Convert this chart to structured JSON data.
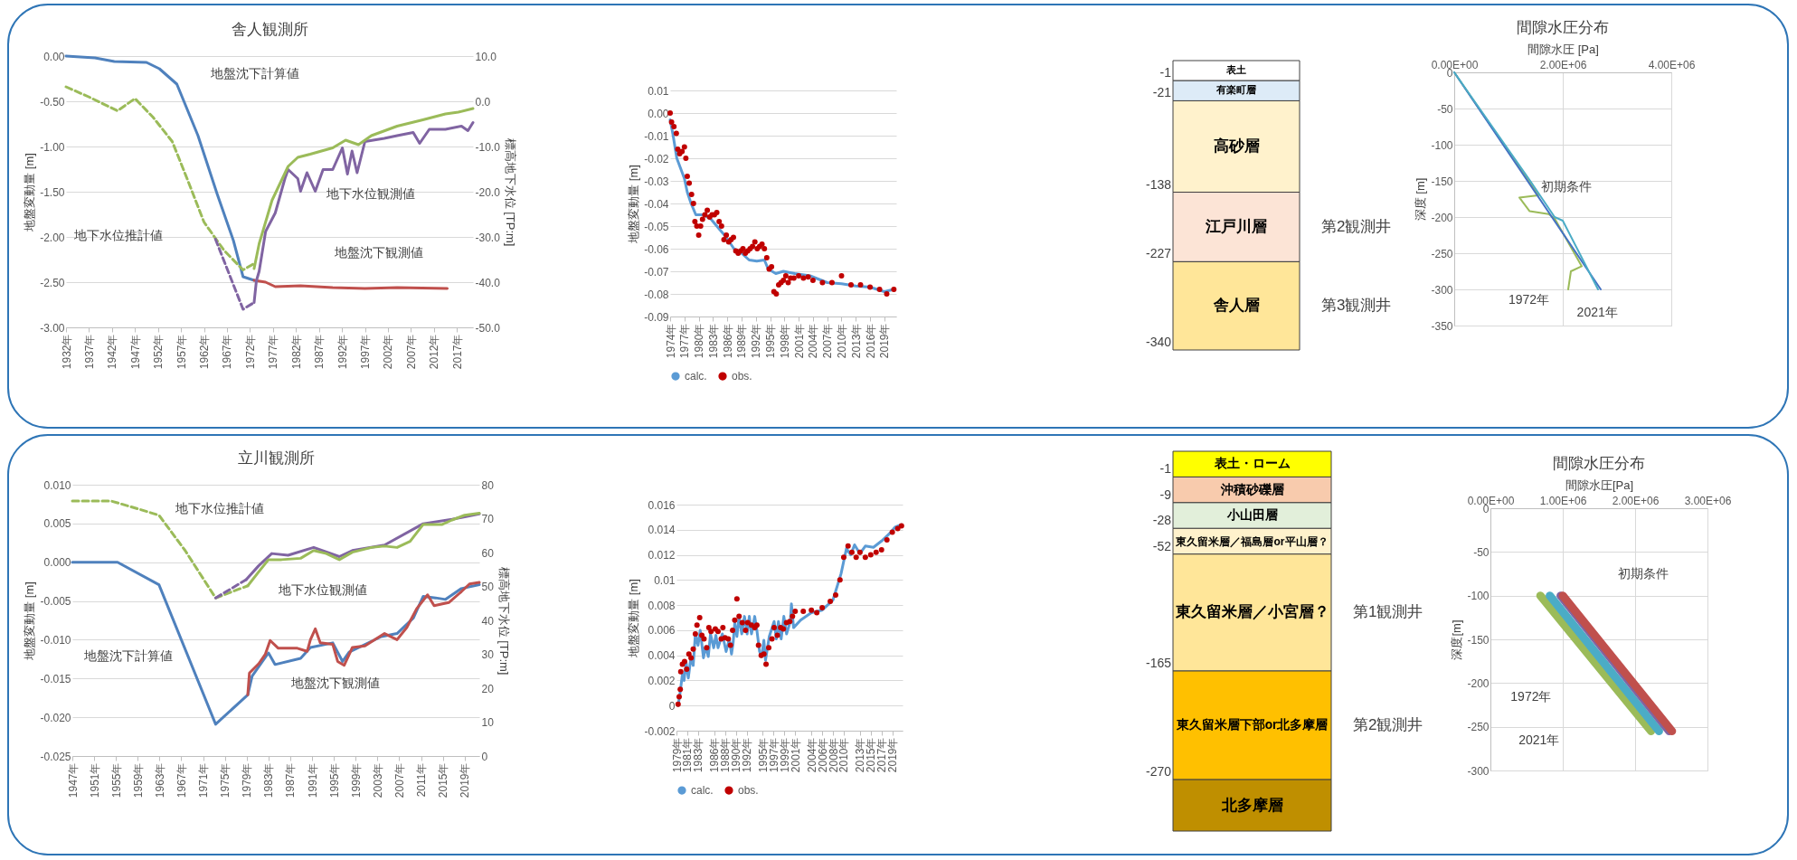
{
  "chart_data": [
    {
      "type": "line",
      "title": "舎人観測所",
      "ylabel": "地盤変動量 [m]",
      "y2label": "標高地下水位 [TP:m]",
      "grid": "y",
      "xlim": [
        1932,
        2020.5
      ],
      "xticks": [
        {
          "value": 1932,
          "label": "1932年"
        },
        {
          "value": 1937,
          "label": "1937年"
        },
        {
          "value": 1942,
          "label": "1942年"
        },
        {
          "value": 1947,
          "label": "1947年"
        },
        {
          "value": 1952,
          "label": "1952年"
        },
        {
          "value": 1957,
          "label": "1957年"
        },
        {
          "value": 1962,
          "label": "1962年"
        },
        {
          "value": 1967,
          "label": "1967年"
        },
        {
          "value": 1972,
          "label": "1972年"
        },
        {
          "value": 1977,
          "label": "1977年"
        },
        {
          "value": 1982,
          "label": "1982年"
        },
        {
          "value": 1987,
          "label": "1987年"
        },
        {
          "value": 1992,
          "label": "1992年"
        },
        {
          "value": 1997,
          "label": "1997年"
        },
        {
          "value": 2002,
          "label": "2002年"
        },
        {
          "value": 2007,
          "label": "2007年"
        },
        {
          "value": 2012,
          "label": "2012年"
        },
        {
          "value": 2017,
          "label": "2017年"
        }
      ],
      "ylim": [
        -3,
        0
      ],
      "yticks": [
        {
          "value": 0,
          "label": "0.00"
        },
        {
          "value": -0.5,
          "label": "-0.50"
        },
        {
          "value": -1,
          "label": "-1.00"
        },
        {
          "value": -1.5,
          "label": "-1.50"
        },
        {
          "value": -2,
          "label": "-2.00"
        },
        {
          "value": -2.5,
          "label": "-2.50"
        },
        {
          "value": -3,
          "label": "-3.00"
        }
      ],
      "y2lim": [
        -50,
        10
      ],
      "y2ticks": [
        {
          "value": 10,
          "label": "10.0"
        },
        {
          "value": 0,
          "label": "0.0"
        },
        {
          "value": -10,
          "label": "-10.0"
        },
        {
          "value": -20,
          "label": "-20.0"
        },
        {
          "value": -30,
          "label": "-30.0"
        },
        {
          "value": -40,
          "label": "-40.0"
        },
        {
          "value": -50,
          "label": "-50.0"
        }
      ],
      "series": [
        {
          "color": "#9bbb59",
          "axis": "y2",
          "line_style": "dashed",
          "x": [
            1932,
            1936.9,
            1943.2,
            1947,
            1950.9,
            1955.1,
            1958.6,
            1962,
            1966.3,
            1970.5,
            1972.9
          ],
          "values": [
            3.2,
            1.0,
            -2.1,
            0.6,
            -3.5,
            -8.9,
            -17.8,
            -26.7,
            -32.9,
            -37.3,
            -35.9
          ]
        },
        {
          "color": "#8064a2",
          "axis": "y2",
          "line_style": "dashed",
          "x": [
            1964.5,
            1970.5,
            1972.9
          ],
          "values": [
            -30.5,
            -46.0,
            -44.5
          ]
        },
        {
          "color": "#8064a2",
          "axis": "y2",
          "x": [
            1972.9,
            1973.4,
            1974,
            1975.4,
            1977.5,
            1979.6,
            1980.3,
            1982.4,
            1983,
            1984.4,
            1986.2,
            1987.9,
            1990,
            1992.1,
            1993.2,
            1994.2,
            1995.3,
            1997,
            2001.2,
            2004,
            2007.5,
            2008.9,
            2011,
            2014.5,
            2018,
            2019.4,
            2020.5
          ],
          "values": [
            -44.5,
            -39.7,
            -37.6,
            -28.8,
            -24.7,
            -17.1,
            -15.1,
            -17.1,
            -19.9,
            -15.8,
            -19.9,
            -15.1,
            -15.1,
            -10.3,
            -16.1,
            -11.0,
            -15.8,
            -8.9,
            -8.2,
            -7.6,
            -6.9,
            -9.3,
            -6.2,
            -6.2,
            -5.5,
            -6.5,
            -4.7
          ]
        },
        {
          "color": "#9bbb59",
          "axis": "y2",
          "x": [
            1972.9,
            1974,
            1976.8,
            1980.3,
            1982.4,
            1985.1,
            1990,
            1992.8,
            1995.6,
            1998.4,
            2004,
            2009.6,
            2014.5,
            2017.3,
            2020.5
          ],
          "values": [
            -37.0,
            -31.5,
            -21.9,
            -14.4,
            -12.4,
            -11.7,
            -10.3,
            -8.6,
            -9.6,
            -7.6,
            -5.5,
            -4.1,
            -2.8,
            -2.4,
            -1.6
          ]
        },
        {
          "color": "#4f81bd",
          "x": [
            1932,
            1938.3,
            1942.5,
            1949.5,
            1952.3,
            1956.1,
            1960.7,
            1964.9,
            1968.4,
            1970.5,
            1972.9
          ],
          "values": [
            0,
            -0.02,
            -0.06,
            -0.07,
            -0.14,
            -0.31,
            -0.88,
            -1.53,
            -2.04,
            -2.44,
            -2.48
          ]
        },
        {
          "color": "#c0504d",
          "x": [
            1972.9,
            1975.4,
            1977.5,
            1983,
            1990,
            1997,
            2004,
            2014.9
          ],
          "values": [
            -2.48,
            -2.5,
            -2.55,
            -2.54,
            -2.56,
            -2.57,
            -2.56,
            -2.57
          ]
        }
      ],
      "annotations": [
        "地盤沈下計算値",
        "地下水位観測値",
        "地下水位推計値",
        "地盤沈下観測値"
      ]
    },
    {
      "type": "scatter",
      "ylabel": "地盤変動量 [m]",
      "grid": "y",
      "legend": "bottom",
      "xlim": [
        1974,
        2021.5
      ],
      "xticks": [
        {
          "value": 1974,
          "label": "1974年"
        },
        {
          "value": 1977,
          "label": "1977年"
        },
        {
          "value": 1980,
          "label": "1980年"
        },
        {
          "value": 1983,
          "label": "1983年"
        },
        {
          "value": 1986,
          "label": "1986年"
        },
        {
          "value": 1989,
          "label": "1989年"
        },
        {
          "value": 1992,
          "label": "1992年"
        },
        {
          "value": 1995,
          "label": "1995年"
        },
        {
          "value": 1998,
          "label": "1998年"
        },
        {
          "value": 2001,
          "label": "2001年"
        },
        {
          "value": 2004,
          "label": "2004年"
        },
        {
          "value": 2007,
          "label": "2007年"
        },
        {
          "value": 2010,
          "label": "2010年"
        },
        {
          "value": 2013,
          "label": "2013年"
        },
        {
          "value": 2016,
          "label": "2016年"
        },
        {
          "value": 2019,
          "label": "2019年"
        }
      ],
      "ylim": [
        -0.09,
        0.01
      ],
      "yticks": [
        0.01,
        {
          "value": 0,
          "label": "0.00"
        },
        -0.01,
        -0.02,
        -0.03,
        -0.04,
        -0.05,
        -0.06,
        -0.07,
        -0.08,
        -0.09
      ],
      "series": [
        {
          "name": "calc.",
          "type": "line",
          "color": "#5b9bd5",
          "x": [
            1974,
            1974.6,
            1975.4,
            1977,
            1977.6,
            1978.4,
            1979.4,
            1981,
            1982.6,
            1984.2,
            1985.8,
            1987.4,
            1989,
            1990.6,
            1992.2,
            1993.8,
            1994.6,
            1996.2,
            1997.8,
            2000.2,
            2003.4,
            2007,
            2010,
            2013,
            2016,
            2019,
            2021
          ],
          "values": [
            -0.003,
            -0.0096,
            -0.02,
            -0.029,
            -0.035,
            -0.04,
            -0.045,
            -0.045,
            -0.047,
            -0.051,
            -0.055,
            -0.06,
            -0.062,
            -0.065,
            -0.0655,
            -0.065,
            -0.069,
            -0.071,
            -0.07,
            -0.071,
            -0.072,
            -0.075,
            -0.0755,
            -0.0765,
            -0.077,
            -0.079,
            -0.078
          ]
        },
        {
          "name": "obs.",
          "type": "scatter",
          "color": "#c00000",
          "x": [
            1974,
            1974.3,
            1974.8,
            1975.3,
            1975.6,
            1976,
            1976.5,
            1977,
            1977.3,
            1977.6,
            1978,
            1978.5,
            1978.9,
            1979.2,
            1979.6,
            1980,
            1980.4,
            1980.8,
            1981.3,
            1981.8,
            1982.3,
            1982.8,
            1983.3,
            1983.8,
            1984.3,
            1984.8,
            1985.3,
            1985.8,
            1986.3,
            1986.8,
            1987.3,
            1987.8,
            1988.3,
            1988.8,
            1989.3,
            1989.8,
            1990.3,
            1990.8,
            1991.3,
            1991.8,
            1992.3,
            1992.8,
            1993.3,
            1993.8,
            1994.3,
            1994.8,
            1995.3,
            1995.8,
            1996.3,
            1996.8,
            1997.3,
            1997.8,
            1998.3,
            1998.8,
            1999.3,
            2000,
            2001,
            2002,
            2003,
            2004,
            2006,
            2008,
            2010,
            2012,
            2014,
            2016,
            2018,
            2019.5,
            2021
          ],
          "values": [
            0,
            -0.004,
            -0.006,
            -0.009,
            -0.016,
            -0.018,
            -0.017,
            -0.015,
            -0.02,
            -0.028,
            -0.031,
            -0.036,
            -0.04,
            -0.048,
            -0.05,
            -0.054,
            -0.05,
            -0.047,
            -0.045,
            -0.043,
            -0.046,
            -0.045,
            -0.045,
            -0.044,
            -0.048,
            -0.05,
            -0.056,
            -0.054,
            -0.057,
            -0.056,
            -0.055,
            -0.061,
            -0.062,
            -0.061,
            -0.06,
            -0.062,
            -0.061,
            -0.06,
            -0.059,
            -0.057,
            -0.06,
            -0.059,
            -0.058,
            -0.06,
            -0.064,
            -0.069,
            -0.068,
            -0.079,
            -0.08,
            -0.076,
            -0.075,
            -0.074,
            -0.072,
            -0.075,
            -0.073,
            -0.073,
            -0.072,
            -0.073,
            -0.0725,
            -0.074,
            -0.075,
            -0.075,
            -0.072,
            -0.076,
            -0.076,
            -0.077,
            -0.078,
            -0.08,
            -0.078
          ]
        }
      ]
    },
    {
      "type": "other",
      "categories": [
        "表土",
        "有楽町層",
        "高砂層",
        "江戸川層",
        "舎人層"
      ],
      "values": [
        -1,
        -21,
        -138,
        -227,
        -340
      ],
      "value_labels": [
        "-1",
        "-21",
        "-138",
        "-227",
        "-340"
      ],
      "colors": [
        "#ffffff",
        "#ddebf7",
        "#fff2cc",
        "#fce4d6",
        "#ffe699"
      ],
      "annotations": [
        {
          "text": "第2観測井",
          "y": "江戸川層"
        },
        {
          "text": "第3観測井",
          "y": "舎人層"
        }
      ]
    },
    {
      "type": "line",
      "title": "間隙水圧分布",
      "xlabel": "間隙水圧 [Pa]",
      "ylabel": "深度 [m]",
      "grid": true,
      "xlim": [
        0,
        4000000
      ],
      "xticks": [
        {
          "value": 0,
          "label": "0.00E+00"
        },
        {
          "value": 2000000,
          "label": "2.00E+06"
        },
        {
          "value": 4000000,
          "label": "4.00E+06"
        }
      ],
      "ylim": [
        -350,
        0
      ],
      "yticks": [
        0,
        -50,
        -100,
        -150,
        -200,
        -250,
        -300,
        -350
      ],
      "series": [
        {
          "color": "#9bbb59",
          "x": [
            0,
            1370000,
            1550000,
            1200000,
            1390000,
            1740000,
            1850000,
            2350000,
            2150000,
            2100000
          ],
          "values": [
            0,
            -150,
            -170,
            -173,
            -192,
            -196,
            -202,
            -268,
            -275,
            -300
          ]
        },
        {
          "color": "#4472c4",
          "x": [
            0,
            2700000
          ],
          "values": [
            0,
            -300
          ]
        },
        {
          "color": "#4bacc6",
          "x": [
            0,
            1400000,
            1850000,
            2000000,
            2650000
          ],
          "values": [
            0,
            -150,
            -200,
            -205,
            -300
          ]
        }
      ],
      "annotations": [
        "初期条件",
        "1972年",
        "2021年"
      ]
    },
    {
      "type": "line",
      "title": "立川観測所",
      "ylabel": "地盤変動量 [m]",
      "y2label": "標高地下水位 [TP:m]",
      "grid": "y",
      "xlim": [
        1947,
        2021.7
      ],
      "xticks": [
        {
          "value": 1947,
          "label": "1947年"
        },
        {
          "value": 1951,
          "label": "1951年"
        },
        {
          "value": 1955,
          "label": "1955年"
        },
        {
          "value": 1959,
          "label": "1959年"
        },
        {
          "value": 1963,
          "label": "1963年"
        },
        {
          "value": 1967,
          "label": "1967年"
        },
        {
          "value": 1971,
          "label": "1971年"
        },
        {
          "value": 1975,
          "label": "1975年"
        },
        {
          "value": 1979,
          "label": "1979年"
        },
        {
          "value": 1983,
          "label": "1983年"
        },
        {
          "value": 1987,
          "label": "1987年"
        },
        {
          "value": 1991,
          "label": "1991年"
        },
        {
          "value": 1995,
          "label": "1995年"
        },
        {
          "value": 1999,
          "label": "1999年"
        },
        {
          "value": 2003,
          "label": "2003年"
        },
        {
          "value": 2007,
          "label": "2007年"
        },
        {
          "value": 2011,
          "label": "2011年"
        },
        {
          "value": 2015,
          "label": "2015年"
        },
        {
          "value": 2019,
          "label": "2019年"
        }
      ],
      "ylim": [
        -0.025,
        0.01
      ],
      "yticks": [
        {
          "value": 0.01,
          "label": "0.010"
        },
        0.005,
        {
          "value": 0,
          "label": "0.000"
        },
        -0.005,
        {
          "value": -0.01,
          "label": "-0.010"
        },
        -0.015,
        {
          "value": -0.02,
          "label": "-0.020"
        },
        -0.025
      ],
      "y2lim": [
        0,
        80
      ],
      "y2ticks": [
        0,
        10,
        20,
        30,
        40,
        50,
        60,
        70,
        80
      ],
      "series": [
        {
          "color": "#9bbb59",
          "axis": "y2",
          "line_style": "dashed",
          "x": [
            1947,
            1954.1,
            1958.8,
            1962.9,
            1967.7,
            1973.3,
            1979.2
          ],
          "values": [
            75.2,
            75.2,
            73.0,
            71.0,
            60.6,
            46.6,
            50.2
          ]
        },
        {
          "color": "#8064a2",
          "axis": "y2",
          "line_style": "dashed",
          "x": [
            1973.3,
            1978.9
          ],
          "values": [
            46.6,
            52.0
          ]
        },
        {
          "color": "#8064a2",
          "axis": "y2",
          "x": [
            1978.9,
            1981.2,
            1983.6,
            1986.6,
            1991.3,
            1996,
            1998.4,
            2004.3,
            2011.4,
            2016.7,
            2021.7
          ],
          "values": [
            52.0,
            56.1,
            59.7,
            59.2,
            61.5,
            58.8,
            60.6,
            62.2,
            68.5,
            69.8,
            71.4
          ]
        },
        {
          "color": "#9bbb59",
          "axis": "y2",
          "x": [
            1979.2,
            1981.2,
            1983,
            1985.4,
            1988.9,
            1991.3,
            1993.6,
            1996,
            1998.4,
            2001.9,
            2004.3,
            2006.6,
            2009,
            2011.4,
            2014.9,
            2016.7,
            2019,
            2021.7
          ],
          "values": [
            50.2,
            54.3,
            57.9,
            57.9,
            58.3,
            60.6,
            59.7,
            57.9,
            60.1,
            61.5,
            61.9,
            61.5,
            63.3,
            68.3,
            68.3,
            69.6,
            71.0,
            71.6
          ]
        },
        {
          "color": "#4f81bd",
          "x": [
            1947,
            1955.3,
            1962.9,
            1973.3,
            1979.2,
            1980,
            1983,
            1984.2,
            1988.9,
            1990.7,
            1994.8,
            1996.6,
            1997.8,
            2003.7,
            2006.6,
            2009.6,
            2011.4,
            2013.7,
            2015.5,
            2018.4,
            2021.7
          ],
          "values": [
            0,
            0,
            -0.0029,
            -0.0209,
            -0.0171,
            -0.0147,
            -0.0117,
            -0.0132,
            -0.0124,
            -0.011,
            -0.0104,
            -0.0128,
            -0.0116,
            -0.0096,
            -0.0092,
            -0.0072,
            -0.0044,
            -0.0046,
            -0.0048,
            -0.0034,
            -0.0029
          ]
        },
        {
          "color": "#c0504d",
          "x": [
            1979.2,
            1979.5,
            1981.2,
            1982.4,
            1983.3,
            1984.8,
            1986.6,
            1988.3,
            1990.1,
            1990.7,
            1991.6,
            1992.5,
            1994.8,
            1995.7,
            1996.9,
            1998.4,
            2000.7,
            2004.3,
            2006.6,
            2008.4,
            2010.2,
            2012.2,
            2013.4,
            2016.1,
            2018.4,
            2019.9,
            2021.7
          ],
          "values": [
            -0.0171,
            -0.0143,
            -0.0131,
            -0.0119,
            -0.0101,
            -0.0111,
            -0.0111,
            -0.0111,
            -0.0115,
            -0.01,
            -0.0086,
            -0.0104,
            -0.0106,
            -0.0128,
            -0.0133,
            -0.011,
            -0.0108,
            -0.0092,
            -0.01,
            -0.0084,
            -0.006,
            -0.0042,
            -0.0056,
            -0.0052,
            -0.0038,
            -0.0028,
            -0.0026
          ]
        }
      ],
      "annotations": [
        "地下水位推計値",
        "地下水位観測値",
        "地盤沈下計算値",
        "地盤沈下観測値"
      ]
    },
    {
      "type": "scatter",
      "ylabel": "地盤変動量 [m]",
      "grid": "y",
      "legend": "bottom",
      "xlim": [
        1979,
        2020.9
      ],
      "xticks": [
        {
          "value": 1979,
          "label": "1979年"
        },
        {
          "value": 1981,
          "label": "1981年"
        },
        {
          "value": 1983,
          "label": "1983年"
        },
        {
          "value": 1986,
          "label": "1986年"
        },
        {
          "value": 1988,
          "label": "1988年"
        },
        {
          "value": 1990,
          "label": "1990年"
        },
        {
          "value": 1992,
          "label": "1992年"
        },
        {
          "value": 1995,
          "label": "1995年"
        },
        {
          "value": 1997,
          "label": "1997年"
        },
        {
          "value": 1999,
          "label": "1999年"
        },
        {
          "value": 2001,
          "label": "2001年"
        },
        {
          "value": 2004,
          "label": "2004年"
        },
        {
          "value": 2006,
          "label": "2006年"
        },
        {
          "value": 2008,
          "label": "2008年"
        },
        {
          "value": 2010,
          "label": "2010年"
        },
        {
          "value": 2013,
          "label": "2013年"
        },
        {
          "value": 2015,
          "label": "2015年"
        },
        {
          "value": 2017,
          "label": "2017年"
        },
        {
          "value": 2019,
          "label": "2019年"
        }
      ],
      "ylim": [
        -0.002,
        0.016
      ],
      "yticks": [
        0.016,
        0.014,
        0.012,
        0.01,
        0.008,
        0.006,
        0.004,
        0.002,
        0,
        -0.002
      ],
      "series": [
        {
          "name": "calc.",
          "type": "line",
          "color": "#5b9bd5",
          "x": [
            1979.3,
            1979.7,
            1980.1,
            1980.4,
            1980.8,
            1981.2,
            1981.7,
            1982.1,
            1982.5,
            1983,
            1983.4,
            1984,
            1984.4,
            1984.9,
            1985.3,
            1985.9,
            1986.3,
            1986.7,
            1987.5,
            1988.2,
            1988.8,
            1989.2,
            1989.5,
            1989.8,
            1990.2,
            1990.6,
            1991.1,
            1991.6,
            1992.1,
            1992.5,
            1992.9,
            1993.5,
            1993.9,
            1994.4,
            1994.8,
            1995.2,
            1995.5,
            1996.2,
            1997.1,
            1997.5,
            1997.9,
            1998.4,
            1998.9,
            1999.4,
            2000.1,
            2000.3,
            2000.7,
            2002,
            2004,
            2006,
            2008,
            2009.5,
            2010.5,
            2011.3,
            2012,
            2013,
            2014,
            2015.5,
            2017,
            2018.5,
            2019.5,
            2020.7
          ],
          "values": [
            0,
            0.0011,
            0.0025,
            0.002,
            0.0034,
            0.0022,
            0.0039,
            0.0032,
            0.0057,
            0.0048,
            0.006,
            0.0038,
            0.0047,
            0.0039,
            0.0057,
            0.0046,
            0.0056,
            0.0046,
            0.0057,
            0.0043,
            0.0053,
            0.0041,
            0.005,
            0.0066,
            0.0055,
            0.0071,
            0.0057,
            0.0071,
            0.0057,
            0.0071,
            0.0057,
            0.0071,
            0.006,
            0.0043,
            0.0039,
            0.0052,
            0.0036,
            0.0055,
            0.0067,
            0.0053,
            0.0067,
            0.0053,
            0.0071,
            0.0057,
            0.0067,
            0.0081,
            0.0062,
            0.0068,
            0.0074,
            0.0076,
            0.0084,
            0.0105,
            0.0125,
            0.012,
            0.0128,
            0.0121,
            0.0127,
            0.0126,
            0.0131,
            0.0137,
            0.0142,
            0.0144
          ]
        },
        {
          "name": "obs.",
          "type": "scatter",
          "color": "#c00000",
          "x": [
            1979.3,
            1979.5,
            1979.7,
            1979.8,
            1980.1,
            1980.5,
            1980.9,
            1981.3,
            1981.7,
            1982.1,
            1982.5,
            1982.8,
            1983.3,
            1983.7,
            1984.1,
            1984.6,
            1985,
            1985.4,
            1986.2,
            1986.7,
            1987.3,
            1987.6,
            1988,
            1988.6,
            1989,
            1989.4,
            1989.8,
            1990.2,
            1990.6,
            1991.2,
            1991.8,
            1992.2,
            1992.9,
            1993.5,
            1993.9,
            1994.2,
            1994.7,
            1995.2,
            1995.6,
            1996.1,
            1996.7,
            1997.1,
            1997.7,
            1998.3,
            1998.8,
            1999.4,
            2000,
            2000.5,
            2001,
            2002.5,
            2004,
            2005,
            2006,
            2007.5,
            2008.5,
            2009.3,
            2010,
            2010.8,
            2011.5,
            2012.3,
            2013,
            2014,
            2015,
            2016,
            2017,
            2018,
            2019,
            2020,
            2020.7
          ],
          "values": [
            0.0001,
            0.0007,
            0.0013,
            0.0027,
            0.0033,
            0.0035,
            0.0029,
            0.0041,
            0.0038,
            0.0045,
            0.0057,
            0.0064,
            0.007,
            0.0056,
            0.0053,
            0.0046,
            0.0062,
            0.0059,
            0.0061,
            0.0059,
            0.0053,
            0.0062,
            0.0054,
            0.0053,
            0.0048,
            0.006,
            0.0068,
            0.0085,
            0.0071,
            0.0066,
            0.006,
            0.0066,
            0.0064,
            0.0062,
            0.0064,
            0.0048,
            0.004,
            0.0041,
            0.0033,
            0.0046,
            0.0053,
            0.0062,
            0.0056,
            0.0062,
            0.0061,
            0.0066,
            0.0067,
            0.0071,
            0.0075,
            0.0075,
            0.0076,
            0.0074,
            0.0078,
            0.0083,
            0.0088,
            0.01,
            0.0118,
            0.0127,
            0.0122,
            0.0118,
            0.0122,
            0.0118,
            0.012,
            0.0122,
            0.0124,
            0.0132,
            0.0138,
            0.0141,
            0.0143
          ]
        }
      ]
    },
    {
      "type": "other",
      "categories": [
        "表土・ローム",
        "沖積砂礫層",
        "小山田層",
        "東久留米層／福島層or平山層？",
        "東久留米層／小宮層？",
        "東久留米層下部or北多摩層",
        "北多摩層"
      ],
      "values": [
        -1,
        -9,
        -28,
        -52,
        -165,
        -270,
        null
      ],
      "value_labels": [
        "-1",
        "-9",
        "-28",
        "-52",
        "-165",
        "-270",
        null
      ],
      "colors": [
        "#ffff00",
        "#f8cbad",
        "#e2efda",
        "#fff2cc",
        "#ffe699",
        "#ffc000",
        "#bf8f00"
      ],
      "annotations": [
        {
          "text": "第1観測井",
          "y": "東久留米層／小宮層？"
        },
        {
          "text": "第2観測井",
          "y": "東久留米層下部or北多摩層"
        }
      ]
    },
    {
      "type": "line",
      "title": "間隙水圧分布",
      "xlabel": "間隙水圧[Pa]",
      "ylabel": "深度[m]",
      "grid": true,
      "xlim": [
        0,
        3000000
      ],
      "xticks": [
        {
          "value": 0,
          "label": "0.00E+00"
        },
        {
          "value": 1000000,
          "label": "1.00E+06"
        },
        {
          "value": 2000000,
          "label": "2.00E+06"
        },
        {
          "value": 3000000,
          "label": "3.00E+06"
        }
      ],
      "ylim": [
        -300,
        0
      ],
      "yticks": [
        0,
        -50,
        -100,
        -150,
        -200,
        -250,
        -300
      ],
      "series": [
        {
          "color": "#9bbb59",
          "x": [
            690000,
            2220000
          ],
          "values": [
            -100,
            -255
          ]
        },
        {
          "color": "#4bacc6",
          "x": [
            820000,
            2330000
          ],
          "values": [
            -100,
            -255
          ]
        },
        {
          "color": "#8064a2",
          "x": [
            970000,
            2470000
          ],
          "values": [
            -100,
            -255
          ]
        },
        {
          "color": "#c0504d",
          "x": [
            1000000,
            2510000
          ],
          "values": [
            -100,
            -255
          ]
        }
      ],
      "annotations": [
        "初期条件",
        "1972年",
        "2021年"
      ]
    }
  ]
}
